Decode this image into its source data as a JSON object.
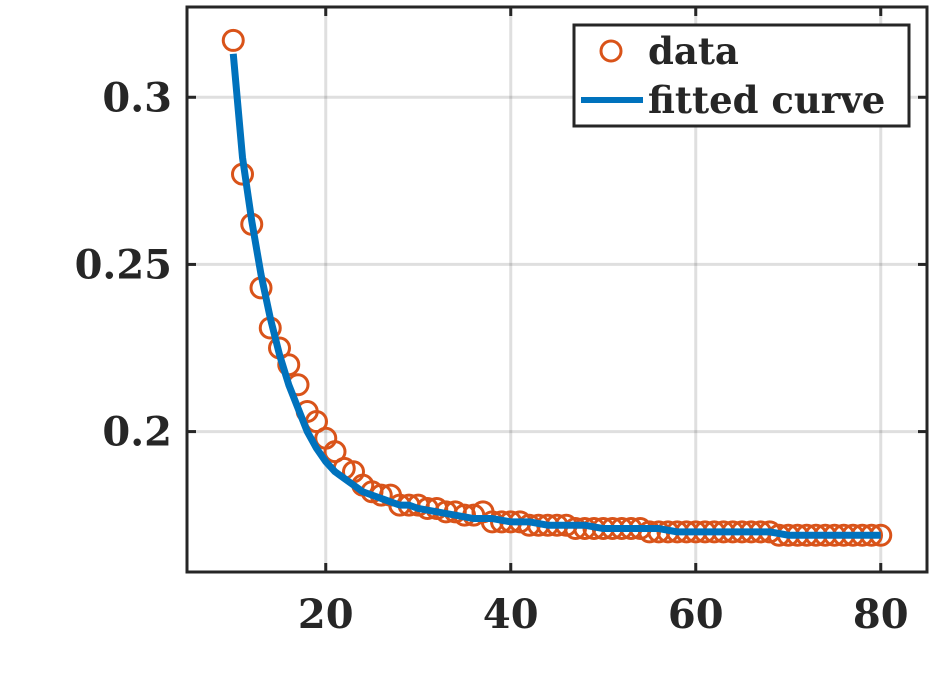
{
  "chart_data": {
    "type": "scatter",
    "title": "",
    "xlabel": "",
    "ylabel": "",
    "xlim": [
      5,
      85
    ],
    "ylim": [
      0.158,
      0.327
    ],
    "grid": true,
    "legend_position": "top-right",
    "x_ticks": [
      {
        "value": 20,
        "label": "20"
      },
      {
        "value": 40,
        "label": "40"
      },
      {
        "value": 60,
        "label": "60"
      },
      {
        "value": 80,
        "label": "80"
      }
    ],
    "y_ticks": [
      {
        "value": 0.2,
        "label": "0.2"
      },
      {
        "value": 0.25,
        "label": "0.25"
      },
      {
        "value": 0.3,
        "label": "0.3"
      }
    ],
    "series": [
      {
        "name": "data",
        "kind": "markers",
        "color": "#D95319",
        "x": [
          10,
          11,
          12,
          13,
          14,
          15,
          16,
          17,
          18,
          19,
          20,
          21,
          22,
          23,
          24,
          25,
          26,
          27,
          28,
          29,
          30,
          31,
          32,
          33,
          34,
          35,
          36,
          37,
          38,
          39,
          40,
          41,
          42,
          43,
          44,
          45,
          46,
          47,
          48,
          49,
          50,
          51,
          52,
          53,
          54,
          55,
          56,
          57,
          58,
          59,
          60,
          61,
          62,
          63,
          64,
          65,
          66,
          67,
          68,
          69,
          70,
          71,
          72,
          73,
          74,
          75,
          76,
          77,
          78,
          79,
          80
        ],
        "y": [
          0.317,
          0.277,
          0.262,
          0.243,
          0.231,
          0.225,
          0.22,
          0.214,
          0.206,
          0.203,
          0.198,
          0.194,
          0.189,
          0.188,
          0.184,
          0.182,
          0.181,
          0.181,
          0.178,
          0.178,
          0.178,
          0.177,
          0.177,
          0.176,
          0.176,
          0.175,
          0.175,
          0.176,
          0.173,
          0.173,
          0.173,
          0.173,
          0.172,
          0.172,
          0.172,
          0.172,
          0.172,
          0.171,
          0.171,
          0.171,
          0.171,
          0.171,
          0.171,
          0.171,
          0.171,
          0.17,
          0.17,
          0.17,
          0.17,
          0.17,
          0.17,
          0.17,
          0.17,
          0.17,
          0.17,
          0.17,
          0.17,
          0.17,
          0.17,
          0.169,
          0.169,
          0.169,
          0.169,
          0.169,
          0.169,
          0.169,
          0.169,
          0.169,
          0.169,
          0.169,
          0.169
        ]
      },
      {
        "name": "fitted curve",
        "kind": "line",
        "color": "#0072BD",
        "x": [
          10,
          11,
          12,
          13,
          14,
          15,
          16,
          17,
          18,
          19,
          20,
          21,
          22,
          23,
          24,
          25,
          26,
          27,
          28,
          29,
          30,
          32,
          34,
          36,
          38,
          40,
          42,
          44,
          46,
          48,
          50,
          52,
          54,
          56,
          58,
          60,
          62,
          64,
          66,
          68,
          70,
          72,
          74,
          76,
          78,
          80
        ],
        "y": [
          0.313,
          0.282,
          0.263,
          0.247,
          0.234,
          0.223,
          0.214,
          0.207,
          0.2,
          0.195,
          0.191,
          0.188,
          0.186,
          0.184,
          0.182,
          0.181,
          0.18,
          0.179,
          0.178,
          0.178,
          0.177,
          0.176,
          0.175,
          0.174,
          0.174,
          0.173,
          0.173,
          0.172,
          0.172,
          0.172,
          0.171,
          0.171,
          0.171,
          0.171,
          0.17,
          0.17,
          0.17,
          0.17,
          0.17,
          0.17,
          0.169,
          0.169,
          0.169,
          0.169,
          0.169,
          0.169
        ]
      }
    ]
  }
}
